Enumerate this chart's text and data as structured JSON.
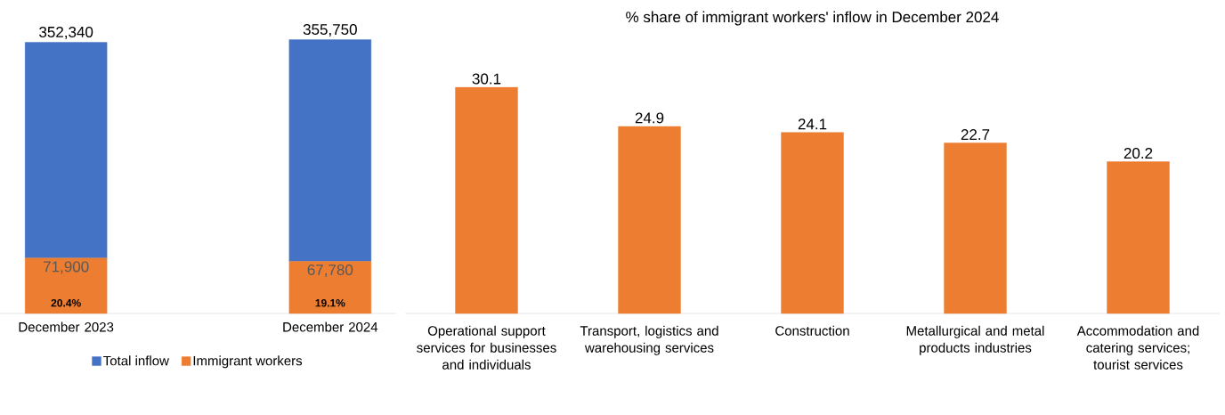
{
  "chart_data": [
    {
      "type": "bar",
      "stacked": true,
      "categories": [
        "December 2023",
        "December 2024"
      ],
      "series": [
        {
          "name": "Immigrant workers",
          "color": "#ed7d31",
          "values": [
            71900,
            67780
          ],
          "value_labels": [
            "71,900",
            "67,780"
          ]
        },
        {
          "name": "Total inflow",
          "color": "#4472c4",
          "values": [
            280440,
            287970
          ]
        }
      ],
      "totals": [
        "352,340",
        "355,750"
      ],
      "annotations": [
        {
          "text": "20.4%",
          "x": "December 2023",
          "y": 0
        },
        {
          "text": "19.1%",
          "x": "December 2024",
          "y": 0
        }
      ],
      "legend": "bottom"
    },
    {
      "type": "bar",
      "title": "% share of immigrant workers' inflow in December 2024",
      "categories": [
        "Operational support services for businesses and individuals",
        "Transport, logistics and warehousing services",
        "Construction",
        "Metallurgical and metal products industries",
        "Accommodation and catering services; tourist services"
      ],
      "values": [
        30.1,
        24.9,
        24.1,
        22.7,
        20.2
      ],
      "color": "#ed7d31",
      "data_labels": true
    }
  ]
}
